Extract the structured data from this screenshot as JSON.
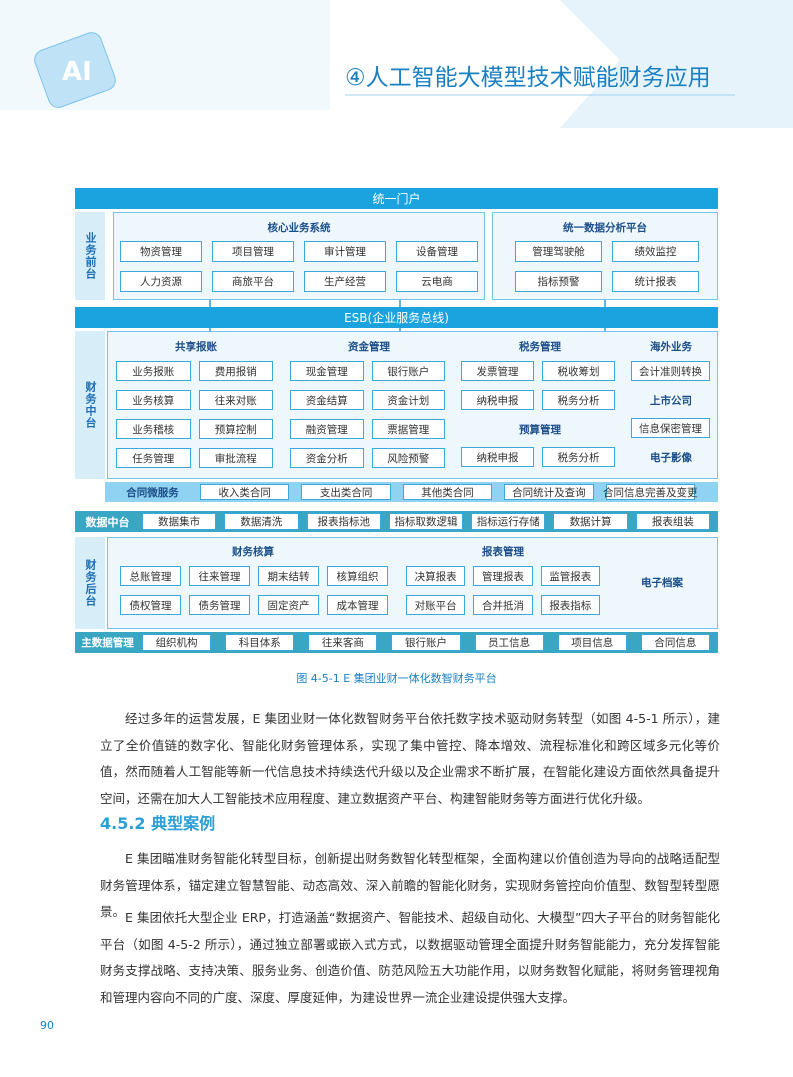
{
  "header": {
    "chapter_title": "④人工智能大模型技术赋能财务应用"
  },
  "diagram": {
    "portal": "统一门户",
    "front": {
      "label": "业务前台",
      "groups": [
        {
          "title": "核心业务系统",
          "items": [
            "物资管理",
            "项目管理",
            "审计管理",
            "设备管理",
            "人力资源",
            "商旅平台",
            "生产经营",
            "云电商"
          ]
        },
        {
          "title": "统一数据分析平台",
          "items": [
            "管理驾驶舱",
            "绩效监控",
            "指标预警",
            "统计报表"
          ]
        }
      ]
    },
    "esb": "ESB(企业服务总线)",
    "middle": {
      "label": "财务中台",
      "groups": [
        {
          "title": "共享报账",
          "items": [
            "业务报账",
            "费用报销",
            "业务核算",
            "往来对账",
            "业务稽核",
            "预算控制",
            "任务管理",
            "审批流程"
          ]
        },
        {
          "title": "资金管理",
          "items": [
            "现金管理",
            "银行账户",
            "资金结算",
            "资金计划",
            "融资管理",
            "票据管理",
            "资金分析",
            "风险预警"
          ]
        },
        {
          "title": "税务管理",
          "items": [
            "发票管理",
            "税收筹划",
            "纳税申报",
            "税务分析"
          ],
          "sub_title": "预算管理",
          "sub_items": [
            "纳税申报",
            "税务分析"
          ]
        },
        {
          "title": "海外业务",
          "items": [
            "会计准则转换"
          ],
          "sub_title": "上市公司",
          "sub_items": [
            "信息保密管理"
          ],
          "extra_title": "电子影像"
        }
      ]
    },
    "contract": {
      "label": "合同微服务",
      "items": [
        "收入类合同",
        "支出类合同",
        "其他类合同",
        "合同统计及查询",
        "合同信息完善及变更"
      ]
    },
    "data_platform": {
      "label": "数据中台",
      "items": [
        "数据集市",
        "数据清洗",
        "报表指标池",
        "指标取数逻辑",
        "指标运行存储",
        "数据计算",
        "报表组装"
      ]
    },
    "back": {
      "label": "财务后台",
      "groups": [
        {
          "title": "财务核算",
          "items": [
            "总账管理",
            "往来管理",
            "期末结转",
            "核算组织",
            "债权管理",
            "债务管理",
            "固定资产",
            "成本管理"
          ]
        },
        {
          "title": "报表管理",
          "items": [
            "决算报表",
            "管理报表",
            "监管报表",
            "对账平台",
            "合并抵消",
            "报表指标"
          ]
        },
        {
          "title": "电子档案"
        }
      ]
    },
    "master": {
      "label": "主数据管理",
      "items": [
        "组织机构",
        "科目体系",
        "往来客商",
        "银行账户",
        "员工信息",
        "项目信息",
        "合同信息"
      ]
    },
    "caption": "图 4-5-1 E 集团业财一体化数智财务平台"
  },
  "body": {
    "paragraph_1": "经过多年的运营发展，E 集团业财一体化数智财务平台依托数字技术驱动财务转型（如图 4-5-1 所示），建立了全价值链的数字化、智能化财务管理体系，实现了集中管控、降本增效、流程标准化和跨区域多元化等价值，然而随着人工智能等新一代信息技术持续迭代升级以及企业需求不断扩展，在智能化建设方面依然具备提升空间，还需在加大人工智能技术应用程度、建立数据资产平台、构建智能财务等方面进行优化升级。",
    "heading": "4.5.2 典型案例",
    "paragraph_2": "E 集团瞄准财务智能化转型目标，创新提出财务数智化转型框架，全面构建以价值创造为导向的战略适配型财务管理体系，锚定建立智慧智能、动态高效、深入前瞻的智能化财务，实现财务管控向价值型、数智型转型愿景。",
    "paragraph_3": "E 集团依托大型企业 ERP，打造涵盖“数据资产、智能技术、超级自动化、大模型”四大子平台的财务智能化平台（如图 4-5-2 所示），通过独立部署或嵌入式方式，以数据驱动管理全面提升财务智能能力，充分发挥智能财务支撑战略、支持决策、服务业务、创造价值、防范风险五大功能作用，以财务数智化赋能，将财务管理视角和管理内容向不同的广度、深度、厚度延伸，为建设世界一流企业建设提供强大支撑。"
  },
  "footer": {
    "page_number": "90"
  }
}
